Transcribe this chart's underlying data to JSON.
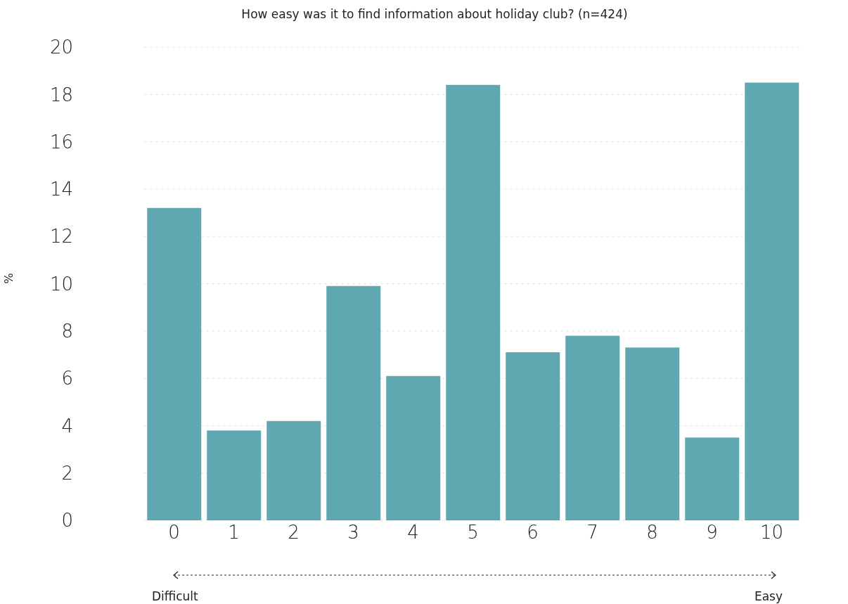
{
  "chart_data": {
    "type": "bar",
    "title": "How easy was it to find information about holiday club? (n=424)",
    "ylabel": "%",
    "categories": [
      "0",
      "1",
      "2",
      "3",
      "4",
      "5",
      "6",
      "7",
      "8",
      "9",
      "10"
    ],
    "values": [
      13.2,
      3.8,
      4.2,
      9.9,
      6.1,
      18.4,
      7.1,
      7.8,
      7.3,
      3.5,
      18.5
    ],
    "color": "#5fa8b2",
    "ylim": [
      0,
      20
    ],
    "yticks": [
      0,
      2,
      4,
      6,
      8,
      10,
      12,
      14,
      16,
      18,
      20
    ],
    "grid": "y",
    "annotations": [
      "Difficult",
      "Easy"
    ]
  }
}
